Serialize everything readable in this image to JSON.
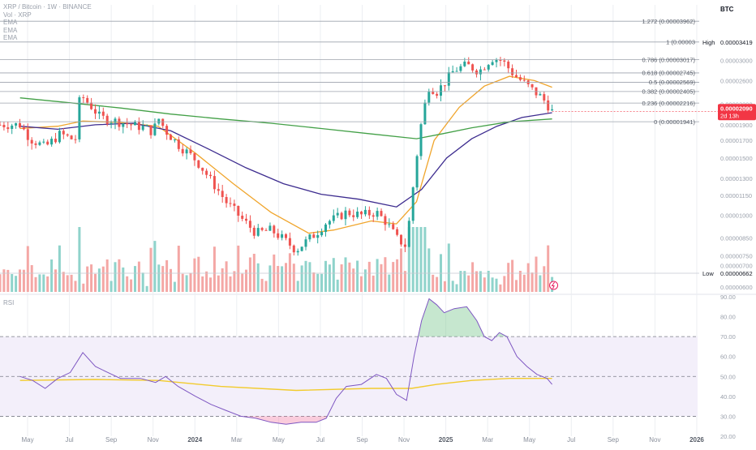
{
  "header": {
    "symbol_line": "XRP / Bitcoin · 1W · BINANCE",
    "vol_line": "Vol · XRP",
    "ema_labels": [
      "EMA",
      "EMA",
      "EMA"
    ],
    "rsi_label": "RSI",
    "currency": "BTC"
  },
  "colors": {
    "up": "#26a69a",
    "down": "#ef5350",
    "vol_up": "#8fd3cb",
    "vol_down": "#f4a7a5",
    "ema_fast": "#f0a52c",
    "ema_mid": "#3d2c8f",
    "ema_slow": "#43a047",
    "rsi_line": "#7e57c2",
    "rsi_ma": "#f2cb2c",
    "rsi_band_fill": "#f3effa",
    "price_badge": "#f23645",
    "grid": "#eceef2"
  },
  "chart_data": [
    {
      "type": "candlestick",
      "title": "XRP / Bitcoin · 1W · BINANCE",
      "y_scale": "log",
      "y_ticks": [
        "0.00003000",
        "0.00002600",
        "0.00002200",
        "0.00001900",
        "0.00001700",
        "0.00001500",
        "0.00001300",
        "0.00001150",
        "0.00001000",
        "0.00000850",
        "0.00000750",
        "0.00000700",
        "0.00000600"
      ],
      "x_ticks": [
        "May",
        "Jul",
        "Sep",
        "Nov",
        "2024",
        "Mar",
        "May",
        "Jul",
        "Sep",
        "Nov",
        "2025",
        "Mar",
        "May",
        "Jul",
        "Sep",
        "Nov",
        "2026"
      ],
      "close_path": [
        [
          2023.3,
          1.9e-05
        ],
        [
          2023.34,
          1.72e-05
        ],
        [
          2023.4,
          1.62e-05
        ],
        [
          2023.46,
          1.78e-05
        ],
        [
          2023.52,
          1.7e-05
        ],
        [
          2023.54,
          2.35e-05
        ],
        [
          2023.58,
          2.18e-05
        ],
        [
          2023.62,
          2e-05
        ],
        [
          2023.68,
          1.95e-05
        ],
        [
          2023.74,
          1.9e-05
        ],
        [
          2023.8,
          1.86e-05
        ],
        [
          2023.83,
          1.8e-05
        ],
        [
          2023.85,
          2e-05
        ],
        [
          2023.88,
          1.82e-05
        ],
        [
          2023.93,
          1.65e-05
        ],
        [
          2024.0,
          1.48e-05
        ],
        [
          2024.06,
          1.28e-05
        ],
        [
          2024.12,
          1.1e-05
        ],
        [
          2024.18,
          9.8e-06
        ],
        [
          2024.24,
          8.8e-06
        ],
        [
          2024.3,
          9e-06
        ],
        [
          2024.36,
          8.3e-06
        ],
        [
          2024.4,
          7.8e-06
        ],
        [
          2024.44,
          8.3e-06
        ],
        [
          2024.48,
          8.8e-06
        ],
        [
          2024.52,
          9.5e-06
        ],
        [
          2024.56,
          9.8e-06
        ],
        [
          2024.6,
          1.02e-05
        ],
        [
          2024.66,
          1e-05
        ],
        [
          2024.72,
          1.02e-05
        ],
        [
          2024.76,
          9.5e-06
        ],
        [
          2024.8,
          8.5e-06
        ],
        [
          2024.84,
          8e-06
        ],
        [
          2024.86,
          1.1e-05
        ],
        [
          2024.88,
          1.5e-05
        ],
        [
          2024.9,
          1.95e-05
        ],
        [
          2024.93,
          2.5e-05
        ],
        [
          2024.96,
          2.4e-05
        ],
        [
          2024.99,
          2.55e-05
        ],
        [
          2025.03,
          2.8e-05
        ],
        [
          2025.08,
          2.9e-05
        ],
        [
          2025.13,
          2.78e-05
        ],
        [
          2025.18,
          3.05e-05
        ],
        [
          2025.22,
          3e-05
        ],
        [
          2025.27,
          2.7e-05
        ],
        [
          2025.31,
          2.55e-05
        ],
        [
          2025.35,
          2.4e-05
        ],
        [
          2025.38,
          2.3e-05
        ],
        [
          2025.4,
          2.2e-05
        ],
        [
          2025.42,
          2.09e-05
        ]
      ],
      "ema_lines": [
        {
          "name": "EMA",
          "color_key": "ema_fast",
          "points": [
            [
              2023.3,
              1.85e-05
            ],
            [
              2023.45,
              1.88e-05
            ],
            [
              2023.55,
              1.95e-05
            ],
            [
              2023.7,
              1.93e-05
            ],
            [
              2023.85,
              1.88e-05
            ],
            [
              2024.0,
              1.55e-05
            ],
            [
              2024.15,
              1.25e-05
            ],
            [
              2024.3,
              1.02e-05
            ],
            [
              2024.45,
              8.8e-06
            ],
            [
              2024.55,
              9e-06
            ],
            [
              2024.7,
              9.6e-06
            ],
            [
              2024.8,
              9.4e-06
            ],
            [
              2024.88,
              1.1e-05
            ],
            [
              2024.95,
              1.7e-05
            ],
            [
              2025.05,
              2.15e-05
            ],
            [
              2025.15,
              2.5e-05
            ],
            [
              2025.25,
              2.68e-05
            ],
            [
              2025.35,
              2.6e-05
            ],
            [
              2025.42,
              2.48e-05
            ]
          ]
        },
        {
          "name": "EMA",
          "color_key": "ema_mid",
          "points": [
            [
              2023.3,
              1.88e-05
            ],
            [
              2023.45,
              1.84e-05
            ],
            [
              2023.6,
              1.9e-05
            ],
            [
              2023.75,
              1.92e-05
            ],
            [
              2023.9,
              1.82e-05
            ],
            [
              2024.05,
              1.6e-05
            ],
            [
              2024.2,
              1.4e-05
            ],
            [
              2024.35,
              1.25e-05
            ],
            [
              2024.5,
              1.16e-05
            ],
            [
              2024.65,
              1.12e-05
            ],
            [
              2024.8,
              1.06e-05
            ],
            [
              2024.9,
              1.2e-05
            ],
            [
              2025.0,
              1.5e-05
            ],
            [
              2025.1,
              1.72e-05
            ],
            [
              2025.2,
              1.88e-05
            ],
            [
              2025.3,
              2e-05
            ],
            [
              2025.42,
              2.07e-05
            ]
          ]
        },
        {
          "name": "EMA",
          "color_key": "ema_slow",
          "points": [
            [
              2023.3,
              2.3e-05
            ],
            [
              2023.5,
              2.22e-05
            ],
            [
              2023.7,
              2.14e-05
            ],
            [
              2023.9,
              2.05e-05
            ],
            [
              2024.1,
              1.98e-05
            ],
            [
              2024.3,
              1.92e-05
            ],
            [
              2024.5,
              1.85e-05
            ],
            [
              2024.7,
              1.78e-05
            ],
            [
              2024.88,
              1.72e-05
            ],
            [
              2024.98,
              1.78e-05
            ],
            [
              2025.1,
              1.86e-05
            ],
            [
              2025.25,
              1.94e-05
            ],
            [
              2025.42,
              1.98e-05
            ]
          ]
        }
      ],
      "volume_shown": true
    },
    {
      "type": "line",
      "title": "RSI",
      "ylim": [
        20,
        90
      ],
      "y_ticks": [
        90,
        80,
        70,
        60,
        50,
        40,
        30,
        20
      ],
      "band": [
        30,
        70
      ],
      "midline": 50,
      "rsi": [
        [
          2023.3,
          50
        ],
        [
          2023.35,
          48
        ],
        [
          2023.4,
          44
        ],
        [
          2023.45,
          49
        ],
        [
          2023.5,
          52
        ],
        [
          2023.55,
          62
        ],
        [
          2023.6,
          55
        ],
        [
          2023.65,
          52
        ],
        [
          2023.7,
          49
        ],
        [
          2023.78,
          49
        ],
        [
          2023.84,
          47
        ],
        [
          2023.88,
          50
        ],
        [
          2023.93,
          45
        ],
        [
          2024.0,
          40
        ],
        [
          2024.06,
          36
        ],
        [
          2024.12,
          33
        ],
        [
          2024.18,
          30
        ],
        [
          2024.24,
          29
        ],
        [
          2024.3,
          27
        ],
        [
          2024.36,
          26
        ],
        [
          2024.42,
          27
        ],
        [
          2024.48,
          27
        ],
        [
          2024.52,
          29
        ],
        [
          2024.56,
          39
        ],
        [
          2024.6,
          45
        ],
        [
          2024.66,
          46
        ],
        [
          2024.72,
          51
        ],
        [
          2024.76,
          49
        ],
        [
          2024.8,
          41
        ],
        [
          2024.84,
          38
        ],
        [
          2024.87,
          60
        ],
        [
          2024.9,
          78
        ],
        [
          2024.93,
          89
        ],
        [
          2024.96,
          86
        ],
        [
          2024.99,
          82
        ],
        [
          2025.03,
          84
        ],
        [
          2025.08,
          85
        ],
        [
          2025.12,
          78
        ],
        [
          2025.15,
          70
        ],
        [
          2025.18,
          68
        ],
        [
          2025.21,
          72
        ],
        [
          2025.24,
          70
        ],
        [
          2025.28,
          60
        ],
        [
          2025.32,
          55
        ],
        [
          2025.36,
          51
        ],
        [
          2025.4,
          49
        ],
        [
          2025.42,
          46
        ]
      ],
      "rsi_ma": [
        [
          2023.3,
          48
        ],
        [
          2023.6,
          48.5
        ],
        [
          2023.85,
          48
        ],
        [
          2024.1,
          45
        ],
        [
          2024.4,
          43
        ],
        [
          2024.7,
          44
        ],
        [
          2024.86,
          44
        ],
        [
          2024.96,
          46
        ],
        [
          2025.1,
          48
        ],
        [
          2025.25,
          49
        ],
        [
          2025.42,
          49
        ]
      ]
    }
  ],
  "fib_levels": [
    {
      "ratio": "1.272",
      "price": "0.00003962",
      "label": "1.272 (0.00003962)"
    },
    {
      "ratio": "1",
      "price": "0.00003419",
      "label": "1 (0.00003"
    },
    {
      "ratio": "0.786",
      "price": "0.00003017",
      "label": "0.786 (0.00003017)"
    },
    {
      "ratio": "0.618",
      "price": "0.00002745",
      "label": "0.618 (0.00002745)"
    },
    {
      "ratio": "0.5",
      "price": "0.00002569",
      "label": "0.5 (0.00002569)"
    },
    {
      "ratio": "0.382",
      "price": "0.00002405",
      "label": "0.382 (0.00002405)"
    },
    {
      "ratio": "0.236",
      "price": "0.00002216",
      "label": "0.236 (0.00002216)"
    },
    {
      "ratio": "0",
      "price": "0.00001941",
      "label": "0 (0.00001941)"
    }
  ],
  "high_low": {
    "high_label": "High",
    "high_value": "0.00003419",
    "low_label": "Low",
    "low_value": "0.00000662"
  },
  "price_badge": {
    "value": "0.00002090",
    "countdown": "2d 13h"
  },
  "rsi_axis": [
    "90.00",
    "80.00",
    "70.00",
    "60.00",
    "50.00",
    "40.00",
    "30.00",
    "20.00"
  ]
}
